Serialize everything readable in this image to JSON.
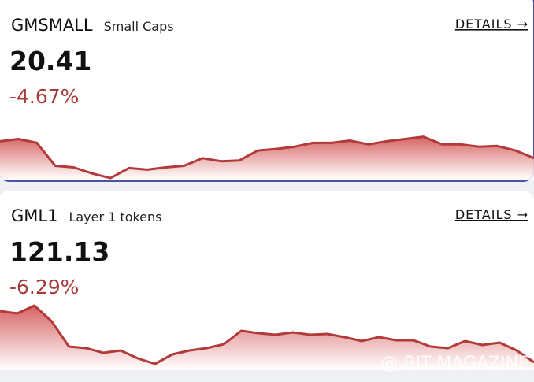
{
  "cards": [
    {
      "ticker": "GMSMALL",
      "name": "Small Caps",
      "price": "20.41",
      "change": "-4.67%",
      "link": "DETAILS →",
      "sparkline": {
        "type": "area",
        "color": "#b23a3a",
        "ylim": [
          0,
          70
        ],
        "values": [
          50,
          53,
          48,
          18,
          16,
          8,
          2,
          15,
          13,
          16,
          18,
          28,
          24,
          25,
          38,
          40,
          43,
          48,
          48,
          51,
          46,
          50,
          53,
          56,
          46,
          46,
          43,
          44,
          38,
          28
        ]
      }
    },
    {
      "ticker": "GML1",
      "name": "Layer 1 tokens",
      "price": "121.13",
      "change": "-6.29%",
      "link": "DETAILS →",
      "sparkline": {
        "type": "area",
        "color": "#b23a3a",
        "ylim": [
          0,
          95
        ],
        "values": [
          75,
          72,
          82,
          62,
          30,
          28,
          22,
          25,
          15,
          8,
          20,
          25,
          28,
          33,
          50,
          47,
          45,
          48,
          45,
          46,
          42,
          37,
          42,
          38,
          38,
          30,
          28,
          37,
          32,
          35,
          25,
          10
        ]
      }
    }
  ],
  "watermark": "@ BIT MAGAZINE"
}
